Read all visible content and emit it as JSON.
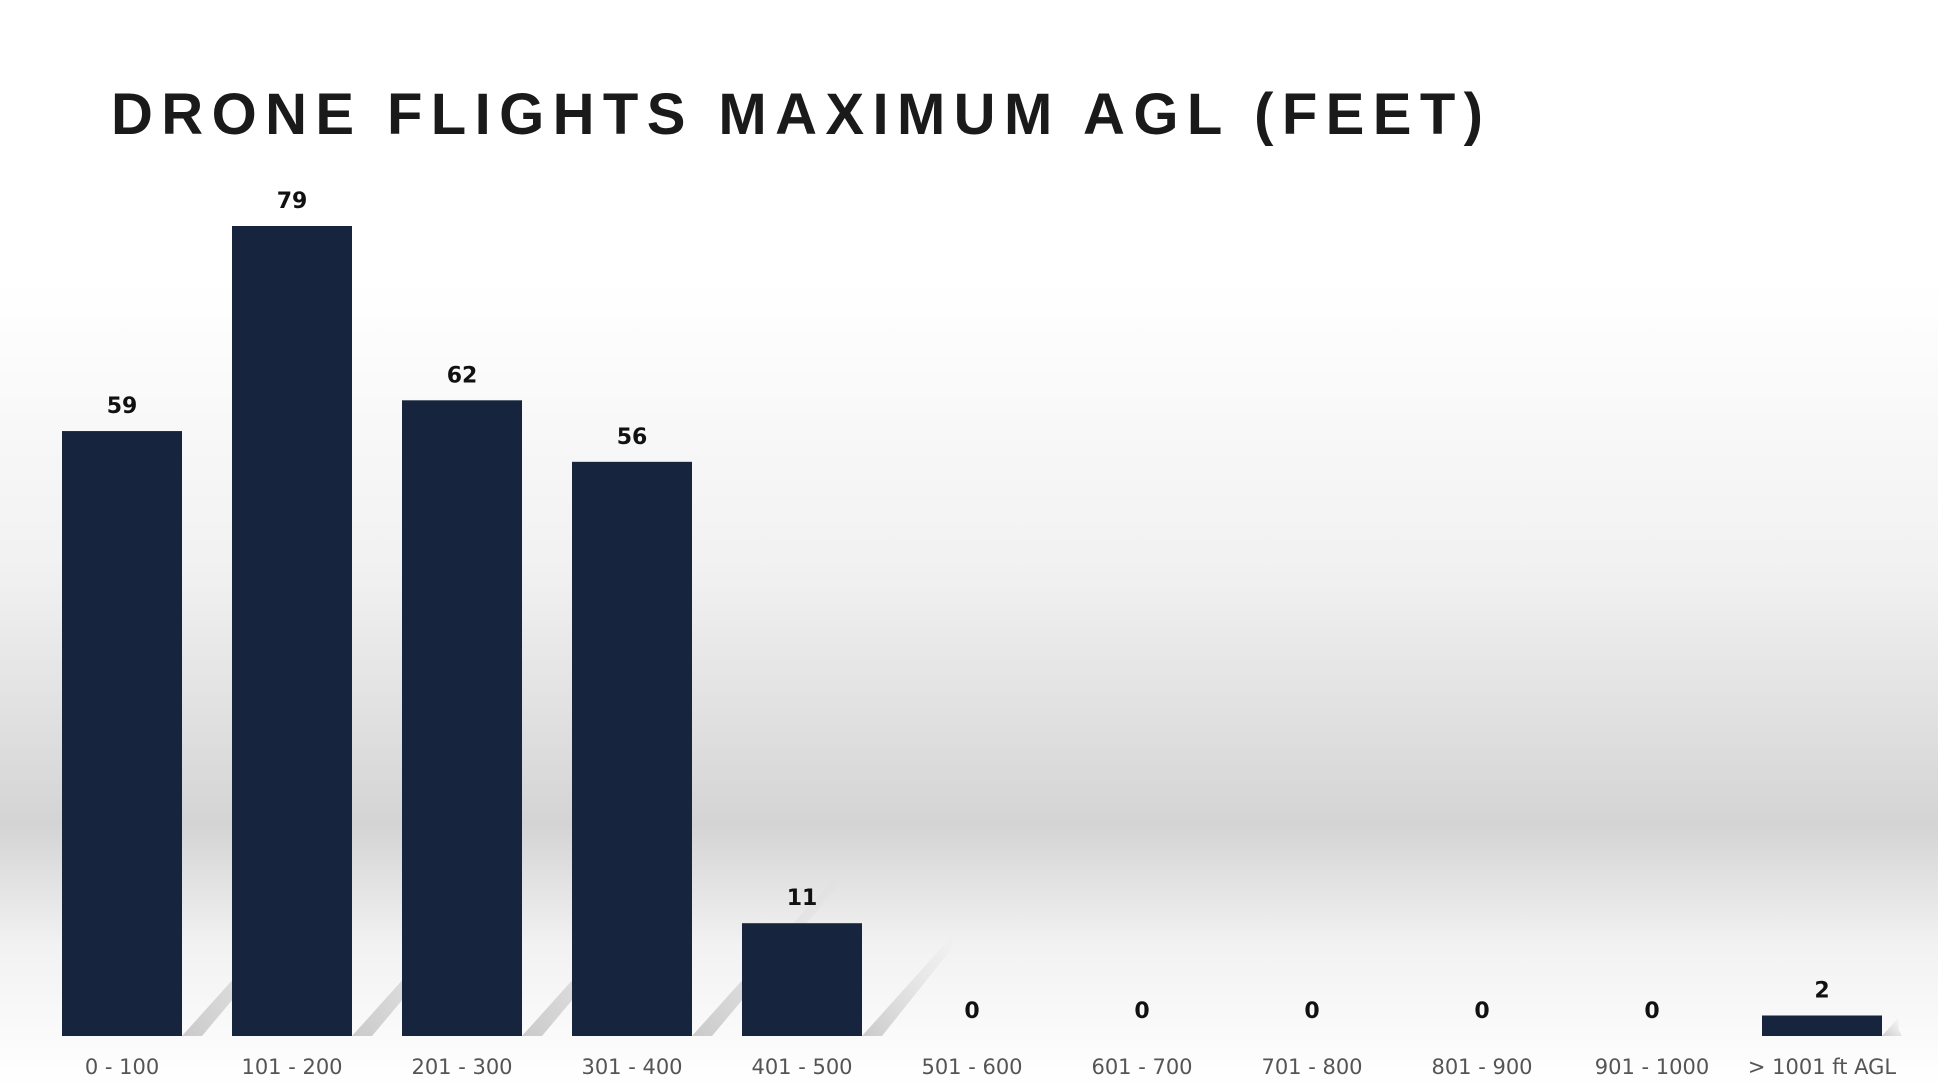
{
  "chart_data": {
    "type": "bar",
    "title": "DRONE FLIGHTS MAXIMUM AGL (FEET)",
    "categories": [
      "0 - 100",
      "101 - 200",
      "201 - 300",
      "301 - 400",
      "401 - 500",
      "501 - 600",
      "601 - 700",
      "701 - 800",
      "801 - 900",
      "901 - 1000",
      "> 1001 ft AGL"
    ],
    "values": [
      59,
      79,
      62,
      56,
      11,
      0,
      0,
      0,
      0,
      0,
      2
    ],
    "xlabel": "",
    "ylabel": "",
    "ylim": [
      0,
      79
    ],
    "grid": false,
    "data_labels": true,
    "bar_color": "#16243d"
  }
}
